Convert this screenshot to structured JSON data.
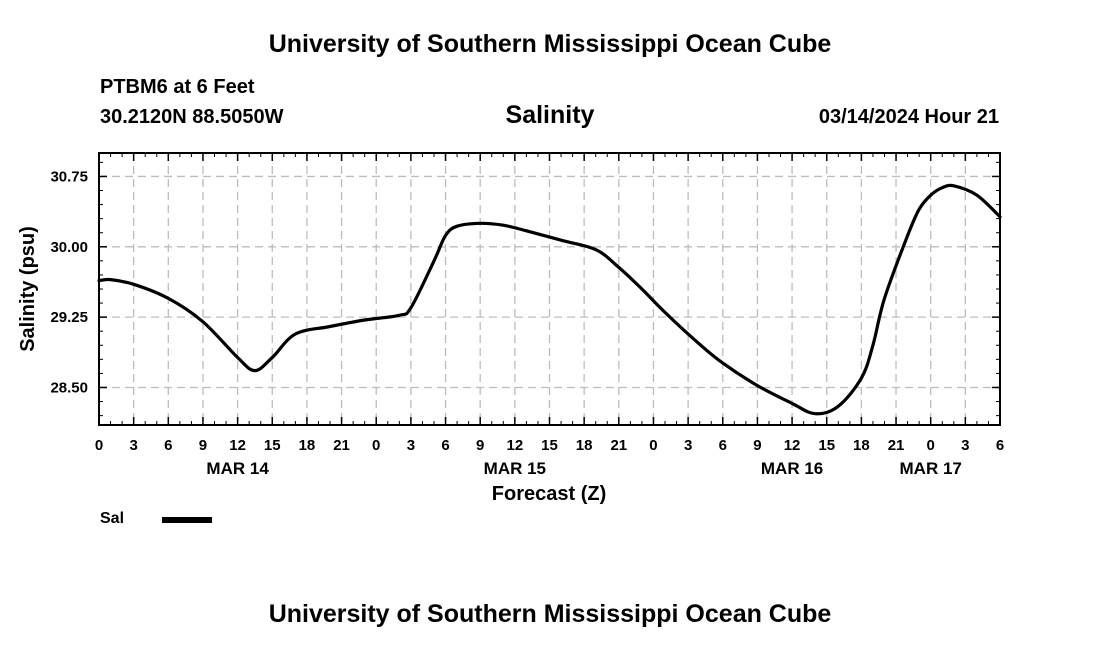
{
  "header": {
    "title_top": "University of Southern Mississippi Ocean Cube",
    "station": "PTBM6 at 6 Feet",
    "coords": "30.2120N  88.5050W",
    "datetime": "03/14/2024 Hour 21",
    "title_bottom": "University of Southern Mississippi Ocean Cube"
  },
  "chart_data": {
    "type": "line",
    "title": "Salinity",
    "xlabel": "Forecast (Z)",
    "ylabel": "Salinity (psu)",
    "xlim": [
      0,
      78
    ],
    "ylim": [
      28.1,
      31.0
    ],
    "grid": true,
    "x_tick_values": [
      0,
      3,
      6,
      9,
      12,
      15,
      18,
      21,
      24,
      27,
      30,
      33,
      36,
      39,
      42,
      45,
      48,
      51,
      54,
      57,
      60,
      63,
      66,
      69,
      72,
      75,
      78
    ],
    "x_tick_labels": [
      "0",
      "3",
      "6",
      "9",
      "12",
      "15",
      "18",
      "21",
      "0",
      "3",
      "6",
      "9",
      "12",
      "15",
      "18",
      "21",
      "0",
      "3",
      "6",
      "9",
      "12",
      "15",
      "18",
      "21",
      "0",
      "3",
      "6"
    ],
    "y_tick_values": [
      28.5,
      29.25,
      30.0,
      30.75
    ],
    "y_tick_labels": [
      "28.50",
      "29.25",
      "30.00",
      "30.75"
    ],
    "date_labels": [
      {
        "x": 12,
        "label": "MAR 14"
      },
      {
        "x": 36,
        "label": "MAR 15"
      },
      {
        "x": 60,
        "label": "MAR 16"
      },
      {
        "x": 72,
        "label": "MAR 17"
      }
    ],
    "series": [
      {
        "name": "Sal",
        "color": "#000000",
        "x": [
          0,
          1,
          3,
          6,
          9,
          12,
          13.5,
          15,
          17,
          20,
          23,
          26,
          27,
          29,
          30,
          31,
          33,
          35,
          37,
          40,
          43,
          45,
          47,
          49,
          52,
          54,
          57,
          60,
          62,
          64,
          66,
          67,
          68,
          70,
          71,
          72,
          73,
          74,
          76,
          78
        ],
        "values": [
          29.64,
          29.65,
          29.6,
          29.45,
          29.2,
          28.82,
          28.68,
          28.82,
          29.07,
          29.15,
          29.22,
          29.27,
          29.35,
          29.85,
          30.12,
          30.22,
          30.25,
          30.23,
          30.17,
          30.07,
          29.97,
          29.78,
          29.55,
          29.3,
          28.96,
          28.76,
          28.52,
          28.33,
          28.22,
          28.3,
          28.6,
          28.95,
          29.45,
          30.12,
          30.4,
          30.55,
          30.63,
          30.65,
          30.55,
          30.32
        ]
      }
    ],
    "legend": {
      "position": "bottom-left",
      "label": "Sal"
    }
  }
}
